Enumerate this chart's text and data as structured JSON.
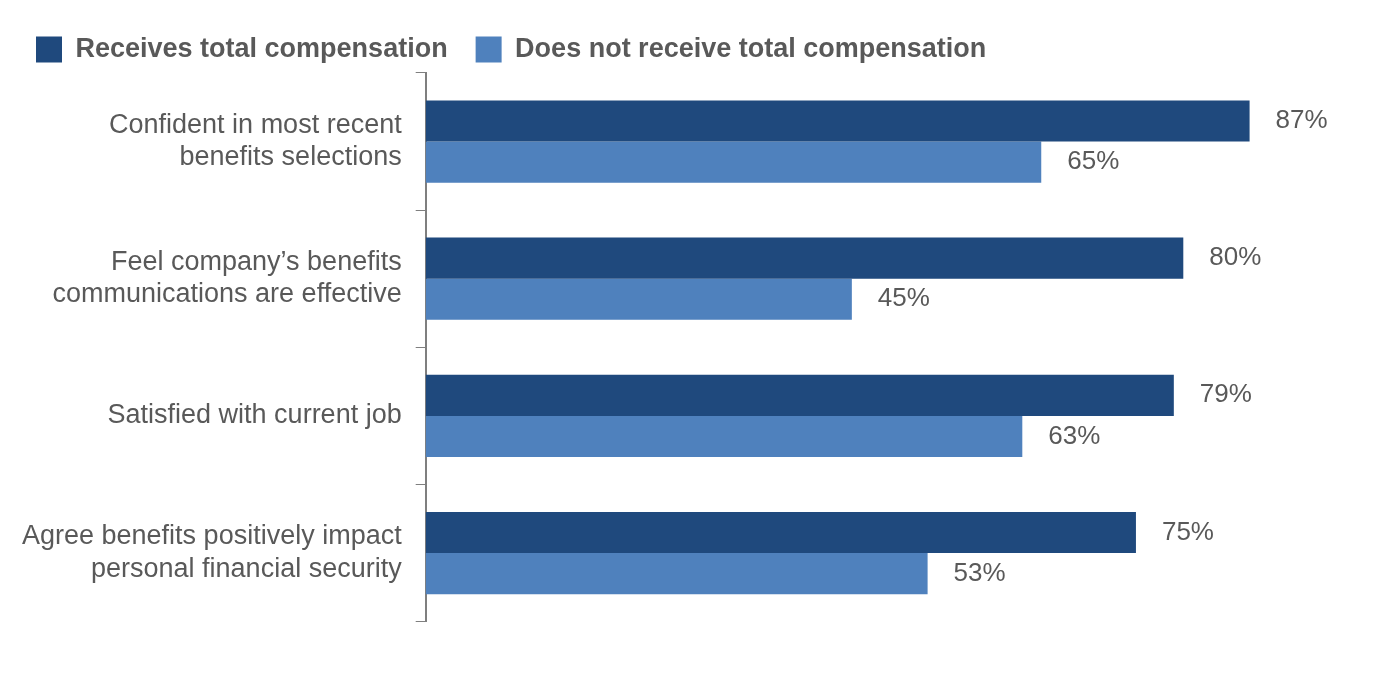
{
  "chart_data": {
    "type": "bar",
    "orientation": "horizontal",
    "categories": [
      "Confident in most recent benefits selections",
      "Feel company’s benefits communications are effective",
      "Satisfied with current job",
      "Agree benefits positively impact personal financial security"
    ],
    "series": [
      {
        "name": "Receives total compensation",
        "color": "#1f497d",
        "values": [
          87,
          80,
          79,
          75
        ],
        "value_labels": [
          "87%",
          "80%",
          "79%",
          "75%"
        ]
      },
      {
        "name": "Does not receive total compensation",
        "color": "#4f81bd",
        "values": [
          65,
          45,
          63,
          53
        ],
        "value_labels": [
          "65%",
          "45%",
          "63%",
          "53%"
        ]
      }
    ],
    "legend": "top",
    "grid": false
  }
}
